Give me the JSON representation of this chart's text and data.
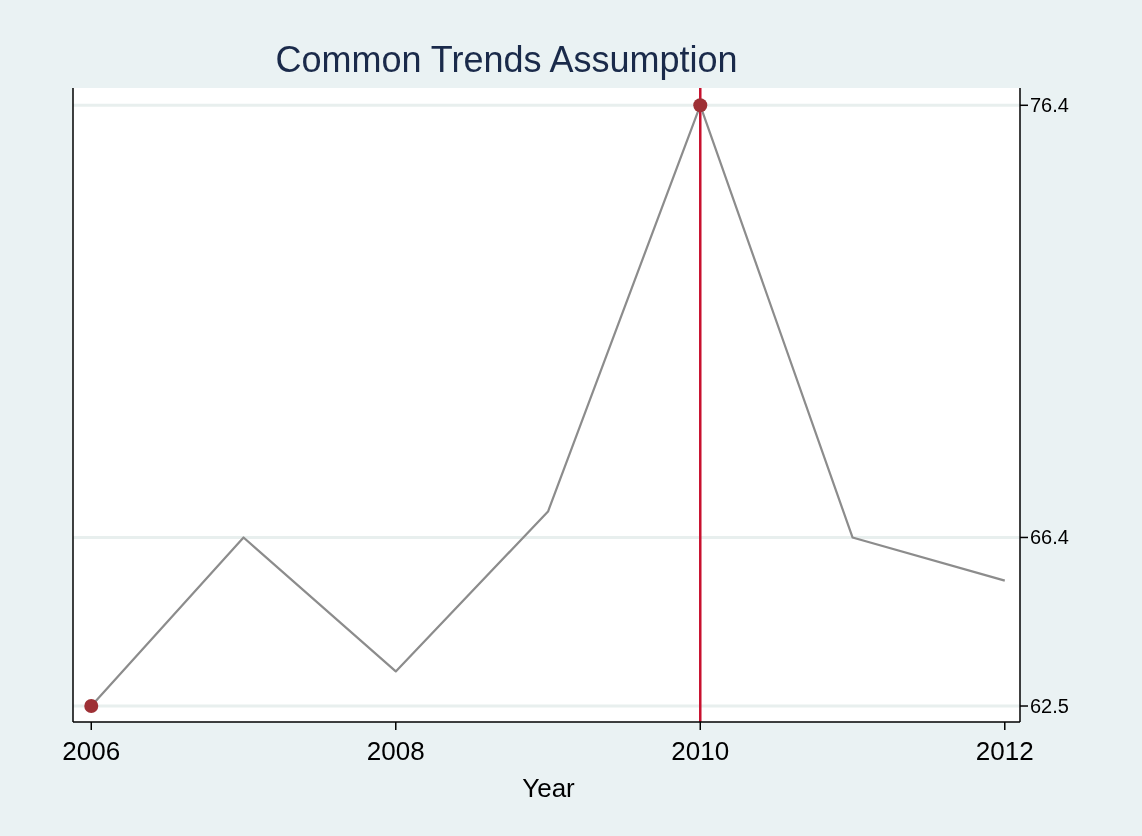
{
  "chart_data": {
    "type": "line",
    "title": "Common Trends Assumption",
    "xlabel": "Year",
    "x": [
      2006,
      2007,
      2008,
      2009,
      2010,
      2011,
      2012
    ],
    "series": [
      {
        "color": "#8c8c8c",
        "marker": "none",
        "values": [
          62.5,
          66.4,
          63.3,
          67.0,
          76.4,
          66.4,
          65.4
        ]
      },
      {
        "type": "scatter",
        "color": "#9e3035",
        "marker": "circle",
        "x": [
          2006,
          2010
        ],
        "values": [
          62.5,
          76.4
        ]
      }
    ],
    "xlim": [
      2005.88,
      2012.1
    ],
    "xticks": [
      2006,
      2008,
      2010,
      2012
    ],
    "ylim": [
      62.13,
      76.8
    ],
    "yticks": [
      62.5,
      66.4,
      76.4
    ],
    "grid": "y",
    "ref_lines": [
      {
        "axis": "x",
        "value": 2010,
        "color": "#c8102e"
      }
    ]
  }
}
